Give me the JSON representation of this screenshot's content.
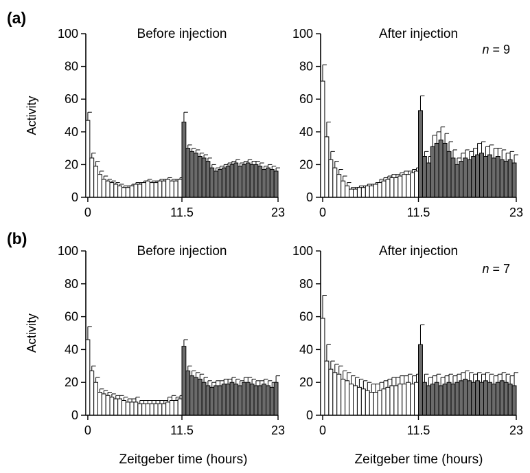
{
  "figure": {
    "xlabel": "Zeitgeber time (hours)"
  },
  "panels": [
    {
      "label": "(a)",
      "n_label": "n = 9"
    },
    {
      "label": "(b)",
      "n_label": "n = 7"
    }
  ],
  "chart_data": [
    {
      "type": "bar",
      "panel": "(a)",
      "title": "Before injection",
      "ylabel": "Activity",
      "xlabel": "Zeitgeber time (hours)",
      "ylim": [
        0,
        100
      ],
      "yticks": [
        0,
        20,
        40,
        60,
        80,
        100
      ],
      "xticks": [
        "0",
        "11.5",
        "23"
      ],
      "grid": false,
      "light_phase_bars": 24,
      "colors": {
        "light": "#ffffff",
        "dark": "#6b6b6b"
      },
      "values": [
        47,
        24,
        19,
        14,
        11,
        10,
        9,
        8,
        7,
        6,
        6,
        7,
        8,
        8,
        9,
        10,
        9,
        9,
        10,
        10,
        11,
        10,
        10,
        11,
        46,
        30,
        28,
        27,
        25,
        24,
        22,
        18,
        16,
        17,
        18,
        19,
        20,
        21,
        19,
        20,
        21,
        20,
        20,
        19,
        17,
        18,
        17,
        16
      ],
      "errors": [
        5,
        3,
        3,
        2,
        2,
        1,
        1,
        1,
        1,
        1,
        1,
        1,
        1,
        1,
        1,
        1,
        1,
        1,
        1,
        1,
        1,
        1,
        1,
        1,
        6,
        2,
        2,
        2,
        2,
        2,
        2,
        2,
        2,
        2,
        2,
        2,
        2,
        2,
        2,
        2,
        2,
        2,
        2,
        2,
        2,
        2,
        2,
        2
      ]
    },
    {
      "type": "bar",
      "panel": "(a)",
      "title": "After injection",
      "ylabel": "",
      "xlabel": "Zeitgeber time (hours)",
      "ylim": [
        0,
        100
      ],
      "yticks": [
        0,
        20,
        40,
        60,
        80,
        100
      ],
      "xticks": [
        "0",
        "11.5",
        "23"
      ],
      "grid": false,
      "light_phase_bars": 24,
      "colors": {
        "light": "#ffffff",
        "dark": "#6b6b6b"
      },
      "values": [
        71,
        37,
        23,
        18,
        14,
        10,
        7,
        5,
        5,
        6,
        6,
        7,
        7,
        8,
        9,
        10,
        11,
        12,
        12,
        13,
        14,
        14,
        15,
        16,
        53,
        25,
        21,
        31,
        33,
        35,
        33,
        28,
        24,
        20,
        22,
        24,
        23,
        25,
        26,
        27,
        25,
        26,
        24,
        25,
        23,
        22,
        23,
        21
      ],
      "errors": [
        10,
        9,
        5,
        4,
        3,
        3,
        2,
        1,
        1,
        1,
        1,
        1,
        1,
        1,
        2,
        2,
        2,
        2,
        2,
        2,
        2,
        2,
        2,
        2,
        9,
        3,
        4,
        7,
        7,
        8,
        6,
        6,
        5,
        4,
        5,
        5,
        5,
        5,
        7,
        7,
        6,
        6,
        6,
        5,
        6,
        5,
        5,
        5
      ]
    },
    {
      "type": "bar",
      "panel": "(b)",
      "title": "Before injection",
      "ylabel": "Activity",
      "xlabel": "Zeitgeber time (hours)",
      "ylim": [
        0,
        100
      ],
      "yticks": [
        0,
        20,
        40,
        60,
        80,
        100
      ],
      "xticks": [
        "0",
        "11.5",
        "23"
      ],
      "grid": false,
      "light_phase_bars": 24,
      "colors": {
        "light": "#ffffff",
        "dark": "#6b6b6b"
      },
      "values": [
        46,
        27,
        20,
        14,
        13,
        12,
        11,
        10,
        10,
        9,
        8,
        8,
        8,
        7,
        7,
        7,
        7,
        7,
        7,
        7,
        8,
        9,
        9,
        10,
        42,
        27,
        24,
        23,
        22,
        20,
        18,
        17,
        18,
        18,
        19,
        19,
        20,
        19,
        18,
        20,
        20,
        19,
        18,
        18,
        19,
        18,
        17,
        20
      ],
      "errors": [
        8,
        3,
        3,
        2,
        2,
        2,
        2,
        2,
        2,
        2,
        2,
        2,
        3,
        2,
        2,
        2,
        2,
        2,
        2,
        2,
        3,
        3,
        2,
        2,
        4,
        3,
        3,
        3,
        3,
        3,
        3,
        3,
        3,
        3,
        3,
        3,
        3,
        3,
        3,
        3,
        3,
        3,
        3,
        3,
        3,
        3,
        3,
        4
      ]
    },
    {
      "type": "bar",
      "panel": "(b)",
      "title": "After injection",
      "ylabel": "",
      "xlabel": "Zeitgeber time (hours)",
      "ylim": [
        0,
        100
      ],
      "yticks": [
        0,
        20,
        40,
        60,
        80,
        100
      ],
      "xticks": [
        "0",
        "11.5",
        "23"
      ],
      "grid": false,
      "light_phase_bars": 24,
      "colors": {
        "light": "#ffffff",
        "dark": "#6b6b6b"
      },
      "values": [
        59,
        33,
        28,
        26,
        25,
        22,
        21,
        19,
        18,
        17,
        16,
        15,
        14,
        14,
        15,
        16,
        17,
        18,
        18,
        19,
        19,
        20,
        19,
        20,
        43,
        20,
        18,
        19,
        20,
        18,
        19,
        20,
        19,
        20,
        21,
        22,
        21,
        20,
        21,
        20,
        21,
        20,
        19,
        20,
        21,
        20,
        19,
        18
      ],
      "errors": [
        14,
        10,
        5,
        5,
        5,
        5,
        5,
        5,
        5,
        5,
        5,
        5,
        5,
        5,
        5,
        5,
        5,
        5,
        5,
        5,
        5,
        5,
        5,
        5,
        12,
        5,
        5,
        5,
        5,
        5,
        5,
        5,
        5,
        5,
        5,
        5,
        5,
        5,
        5,
        5,
        5,
        5,
        5,
        5,
        5,
        5,
        5,
        8
      ]
    }
  ]
}
